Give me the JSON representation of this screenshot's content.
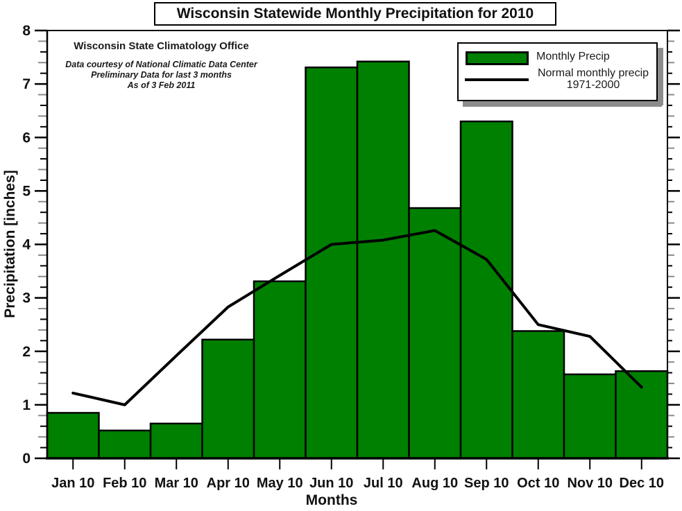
{
  "title": "Wisconsin Statewide Monthly Precipitation for 2010",
  "annotation": {
    "line1": "Wisconsin State Climatology Office",
    "line2": "Data courtesy of National Climatic Data Center",
    "line3": "Preliminary Data for last 3 months",
    "line4": "As of 3 Feb 2011"
  },
  "legend": {
    "bar_label": "Monthly Precip",
    "line_label": "Normal monthly precip",
    "line_label_years": "1971-2000"
  },
  "axes": {
    "x_title": "Months",
    "y_title": "Precipitation [inches]"
  },
  "colors": {
    "bar_fill": "#008000",
    "bar_stroke": "#000000",
    "normal_line": "#000000",
    "axis": "#000000",
    "minor_tick_gray": "#8a8a8a",
    "legend_shadow": "#8c8c8c"
  },
  "chart_data": {
    "type": "bar",
    "title": "Wisconsin Statewide Monthly Precipitation for 2010",
    "xlabel": "Months",
    "ylabel": "Precipitation [inches]",
    "categories": [
      "Jan 10",
      "Feb 10",
      "Mar 10",
      "Apr 10",
      "May 10",
      "Jun 10",
      "Jul 10",
      "Aug 10",
      "Sep 10",
      "Oct 10",
      "Nov 10",
      "Dec 10"
    ],
    "series": [
      {
        "name": "Monthly Precip",
        "type": "bar",
        "values": [
          0.85,
          0.52,
          0.65,
          2.22,
          3.31,
          7.31,
          7.42,
          4.68,
          6.3,
          2.38,
          1.57,
          1.63
        ]
      },
      {
        "name": "Normal monthly precip 1971-2000",
        "type": "line",
        "values": [
          1.22,
          1.0,
          1.92,
          2.83,
          3.42,
          4.0,
          4.08,
          4.26,
          3.72,
          2.5,
          2.28,
          1.33
        ]
      }
    ],
    "ylim": [
      0,
      8
    ],
    "yticks": [
      0,
      1,
      2,
      3,
      4,
      5,
      6,
      7,
      8
    ],
    "minor_tick_step": 0.2,
    "grid": false,
    "legend_position": "top-right"
  }
}
